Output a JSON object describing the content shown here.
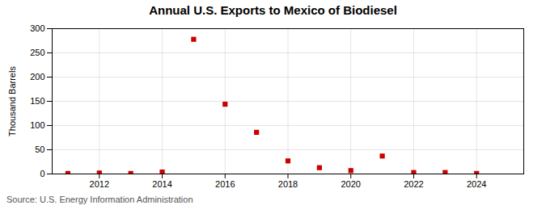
{
  "chart_data": {
    "type": "scatter",
    "title": "Annual U.S. Exports to Mexico of Biodiesel",
    "ylabel": "Thousand Barrels",
    "annotations": [
      "Source: U.S. Energy Information Administration"
    ],
    "x": [
      2011,
      2012,
      2013,
      2014,
      2015,
      2016,
      2017,
      2018,
      2019,
      2020,
      2021,
      2022,
      2023,
      2024
    ],
    "values": [
      1,
      2,
      1,
      4,
      278,
      144,
      86,
      27,
      13,
      7,
      37,
      3,
      3,
      1
    ],
    "color": "#cc0000",
    "marker": "square",
    "xlim": [
      2010.5,
      2025.5
    ],
    "ylim": [
      0,
      300
    ],
    "xticks": [
      2012,
      2014,
      2016,
      2018,
      2020,
      2022,
      2024
    ],
    "yticks": [
      0,
      50,
      100,
      150,
      200,
      250,
      300
    ],
    "grid": true
  }
}
